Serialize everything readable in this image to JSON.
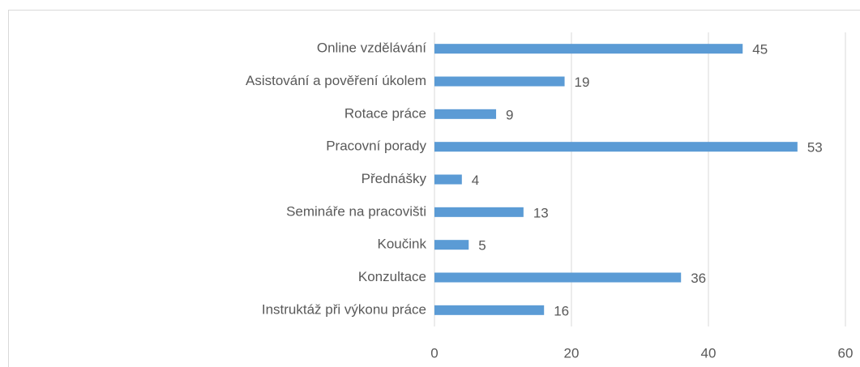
{
  "chart_data": {
    "type": "bar",
    "orientation": "horizontal",
    "categories": [
      "Online vzdělávání",
      "Asistování a pověření úkolem",
      "Rotace práce",
      "Pracovní porady",
      "Přednášky",
      "Semináře na pracovišti",
      "Koučink",
      "Konzultace",
      "Instruktáž při výkonu práce"
    ],
    "values": [
      45,
      19,
      9,
      53,
      4,
      13,
      5,
      36,
      16
    ],
    "color": "#5b9bd5",
    "xlim": [
      0,
      60
    ],
    "xticks": [
      0,
      20,
      40,
      60
    ],
    "grid": true
  }
}
